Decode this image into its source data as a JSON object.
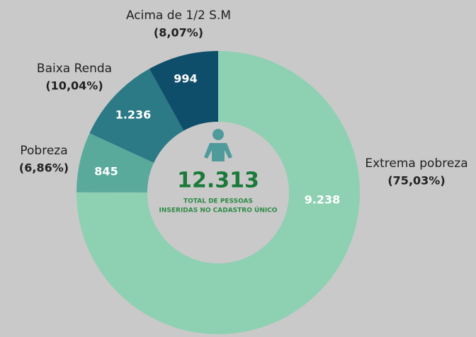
{
  "chart_data": {
    "type": "donut",
    "categories": [
      "Extrema pobreza",
      "Pobreza",
      "Baixa Renda",
      "Acima de 1/2 S.M"
    ],
    "values": [
      9238,
      845,
      1236,
      994
    ],
    "value_labels": [
      "9.238",
      "845",
      "1.236",
      "994"
    ],
    "percents": [
      75.03,
      6.86,
      10.04,
      8.07
    ],
    "percent_labels": [
      "(75,03%)",
      "(6,86%)",
      "(10,04%)",
      "(8,07%)"
    ],
    "colors": [
      "#8ed0b2",
      "#5aaa9c",
      "#2b7a86",
      "#0f4e6a"
    ],
    "total": {
      "value": 12313,
      "label": "12.313"
    },
    "center_text": [
      "TOTAL DE PESSOAS",
      "INSERIDAS NO CADASTRO ÚNICO"
    ]
  }
}
